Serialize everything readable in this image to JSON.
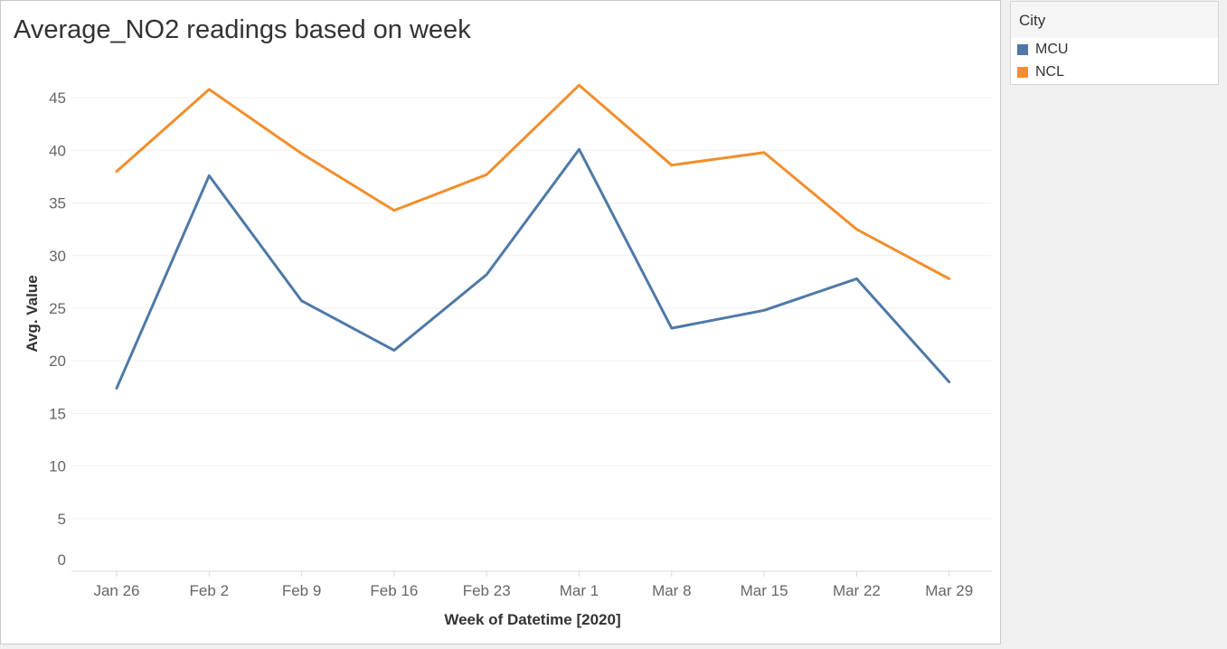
{
  "chart_data": {
    "type": "line",
    "title": "Average_NO2 readings based on week",
    "xlabel": "Week of Datetime [2020]",
    "ylabel": "Avg. Value",
    "categories": [
      "Jan 26",
      "Feb 2",
      "Feb 9",
      "Feb 16",
      "Feb 23",
      "Mar 1",
      "Mar 8",
      "Mar 15",
      "Mar 22",
      "Mar 29"
    ],
    "yticks": [
      0,
      5,
      10,
      15,
      20,
      25,
      30,
      35,
      40,
      45
    ],
    "ylim": [
      0,
      45
    ],
    "grid": true,
    "legend_position": "right",
    "series": [
      {
        "name": "MCU",
        "color": "#4e79a7",
        "values": [
          17.4,
          37.6,
          25.7,
          21.0,
          28.2,
          40.1,
          23.1,
          24.8,
          27.8,
          18.0
        ]
      },
      {
        "name": "NCL",
        "color": "#f28e2b",
        "values": [
          38.0,
          45.8,
          39.7,
          34.3,
          37.7,
          46.2,
          38.6,
          39.8,
          32.5,
          27.8
        ]
      }
    ]
  },
  "legend": {
    "title": "City",
    "items": [
      {
        "label": "MCU",
        "color": "#4e79a7"
      },
      {
        "label": "NCL",
        "color": "#f28e2b"
      }
    ]
  }
}
